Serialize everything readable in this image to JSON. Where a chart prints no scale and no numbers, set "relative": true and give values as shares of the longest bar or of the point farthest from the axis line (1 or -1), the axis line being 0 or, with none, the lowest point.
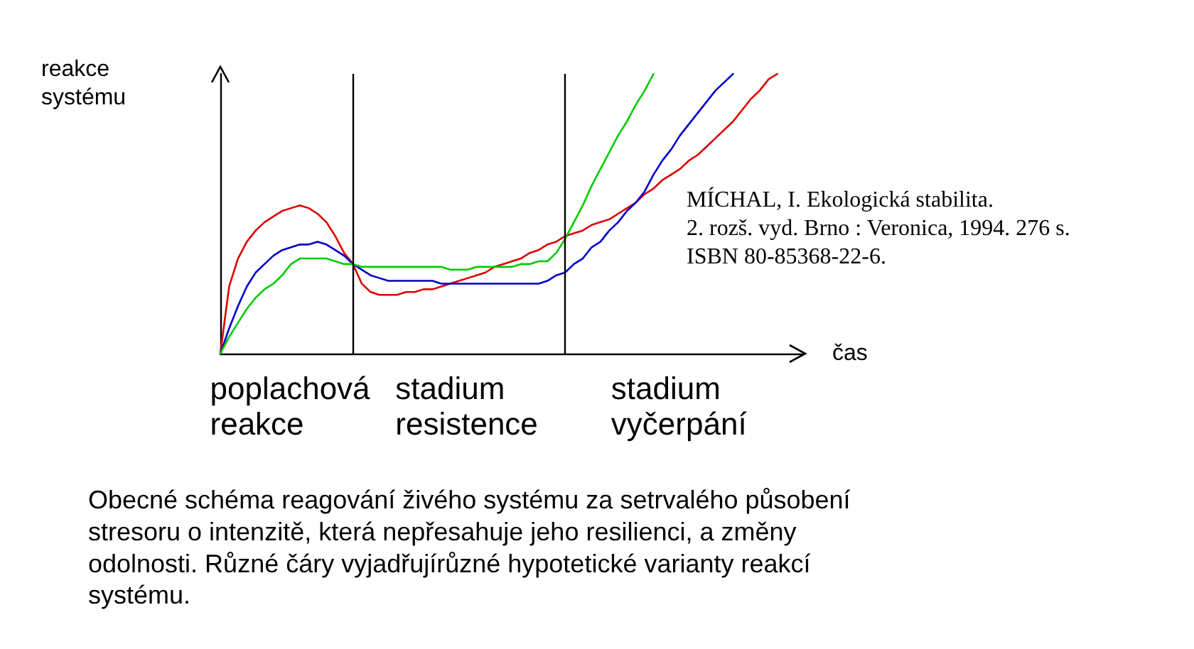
{
  "chart_data": {
    "type": "line",
    "relative": true,
    "xlabel": "čas",
    "ylabel": "reakce systému",
    "tick_labels": "x",
    "marker": "none",
    "line_style": "solid",
    "categories": [
      null,
      null,
      null,
      null,
      null,
      null,
      null,
      null,
      "poplachová reakce",
      null,
      null,
      null,
      null,
      null,
      null,
      null,
      null,
      null,
      null,
      null,
      null,
      null,
      null,
      null,
      null,
      null,
      null,
      null,
      "stadium resistence",
      null,
      null,
      null,
      null,
      null,
      null,
      null,
      null,
      null,
      null,
      null,
      null,
      null,
      null,
      null,
      null,
      null,
      null,
      null,
      null,
      null,
      null,
      null,
      "stadium vyčerpání",
      null,
      null,
      null,
      null,
      null,
      null,
      null,
      null,
      null,
      null,
      null,
      null,
      null,
      null
    ],
    "series": [
      {
        "color": "#dd0000",
        "values": [
          0,
          0.24,
          0.34,
          0.4,
          0.44,
          0.47,
          0.49,
          0.51,
          0.52,
          0.53,
          0.52,
          0.5,
          0.47,
          0.42,
          0.36,
          0.32,
          0.25,
          0.22,
          0.21,
          0.21,
          0.21,
          0.22,
          0.22,
          0.23,
          0.23,
          0.24,
          0.25,
          0.26,
          0.27,
          0.28,
          0.29,
          0.31,
          0.32,
          0.33,
          0.34,
          0.36,
          0.37,
          0.39,
          0.4,
          0.42,
          0.43,
          0.44,
          0.46,
          0.47,
          0.48,
          0.5,
          0.52,
          0.54,
          0.57,
          0.59,
          0.62,
          0.64,
          0.66,
          0.69,
          0.71,
          0.74,
          0.77,
          0.8,
          0.83,
          0.87,
          0.91,
          0.94,
          0.98,
          1,
          null,
          null,
          null
        ]
      },
      {
        "color": "#0000cc",
        "values": [
          0,
          0.09,
          0.17,
          0.24,
          0.29,
          0.32,
          0.35,
          0.37,
          0.38,
          0.39,
          0.39,
          0.4,
          0.39,
          0.37,
          0.35,
          0.32,
          0.3,
          0.28,
          0.27,
          0.26,
          0.26,
          0.26,
          0.26,
          0.26,
          0.26,
          0.25,
          0.25,
          0.25,
          0.25,
          0.25,
          0.25,
          0.25,
          0.25,
          0.25,
          0.25,
          0.25,
          0.25,
          0.26,
          0.28,
          0.29,
          0.32,
          0.34,
          0.38,
          0.4,
          0.44,
          0.47,
          0.51,
          0.54,
          0.58,
          0.64,
          0.69,
          0.73,
          0.78,
          0.82,
          0.86,
          0.9,
          0.94,
          0.97,
          1,
          null,
          null,
          null,
          null,
          null,
          null,
          null,
          null
        ]
      },
      {
        "color": "#00cc00",
        "values": [
          0,
          0.06,
          0.11,
          0.16,
          0.2,
          0.23,
          0.25,
          0.28,
          0.32,
          0.34,
          0.34,
          0.34,
          0.34,
          0.33,
          0.32,
          0.32,
          0.31,
          0.31,
          0.31,
          0.31,
          0.31,
          0.31,
          0.31,
          0.31,
          0.31,
          0.31,
          0.3,
          0.3,
          0.3,
          0.31,
          0.31,
          0.31,
          0.31,
          0.31,
          0.32,
          0.32,
          0.33,
          0.33,
          0.36,
          0.41,
          0.47,
          0.53,
          0.6,
          0.66,
          0.72,
          0.78,
          0.83,
          0.89,
          0.94,
          1,
          null,
          null,
          null,
          null,
          null,
          null,
          null,
          null,
          null,
          null,
          null,
          null,
          null,
          null,
          null,
          null,
          null
        ]
      }
    ],
    "annotations": [
      "MÍCHAL, I. Ekologická stabilita.\n2. rozš. vyd. Brno : Veronica, 1994. 276 s.\nISBN 80-85368-22-6.",
      "Obecné schéma reagování živého systému za setrvalého působení stresoru o intenzitě, která nepřesahuje jeho resilienci, a změny odolnosti. Různé čáry vyjadřujírůzné hypotetické varianty reakcí systému."
    ]
  }
}
